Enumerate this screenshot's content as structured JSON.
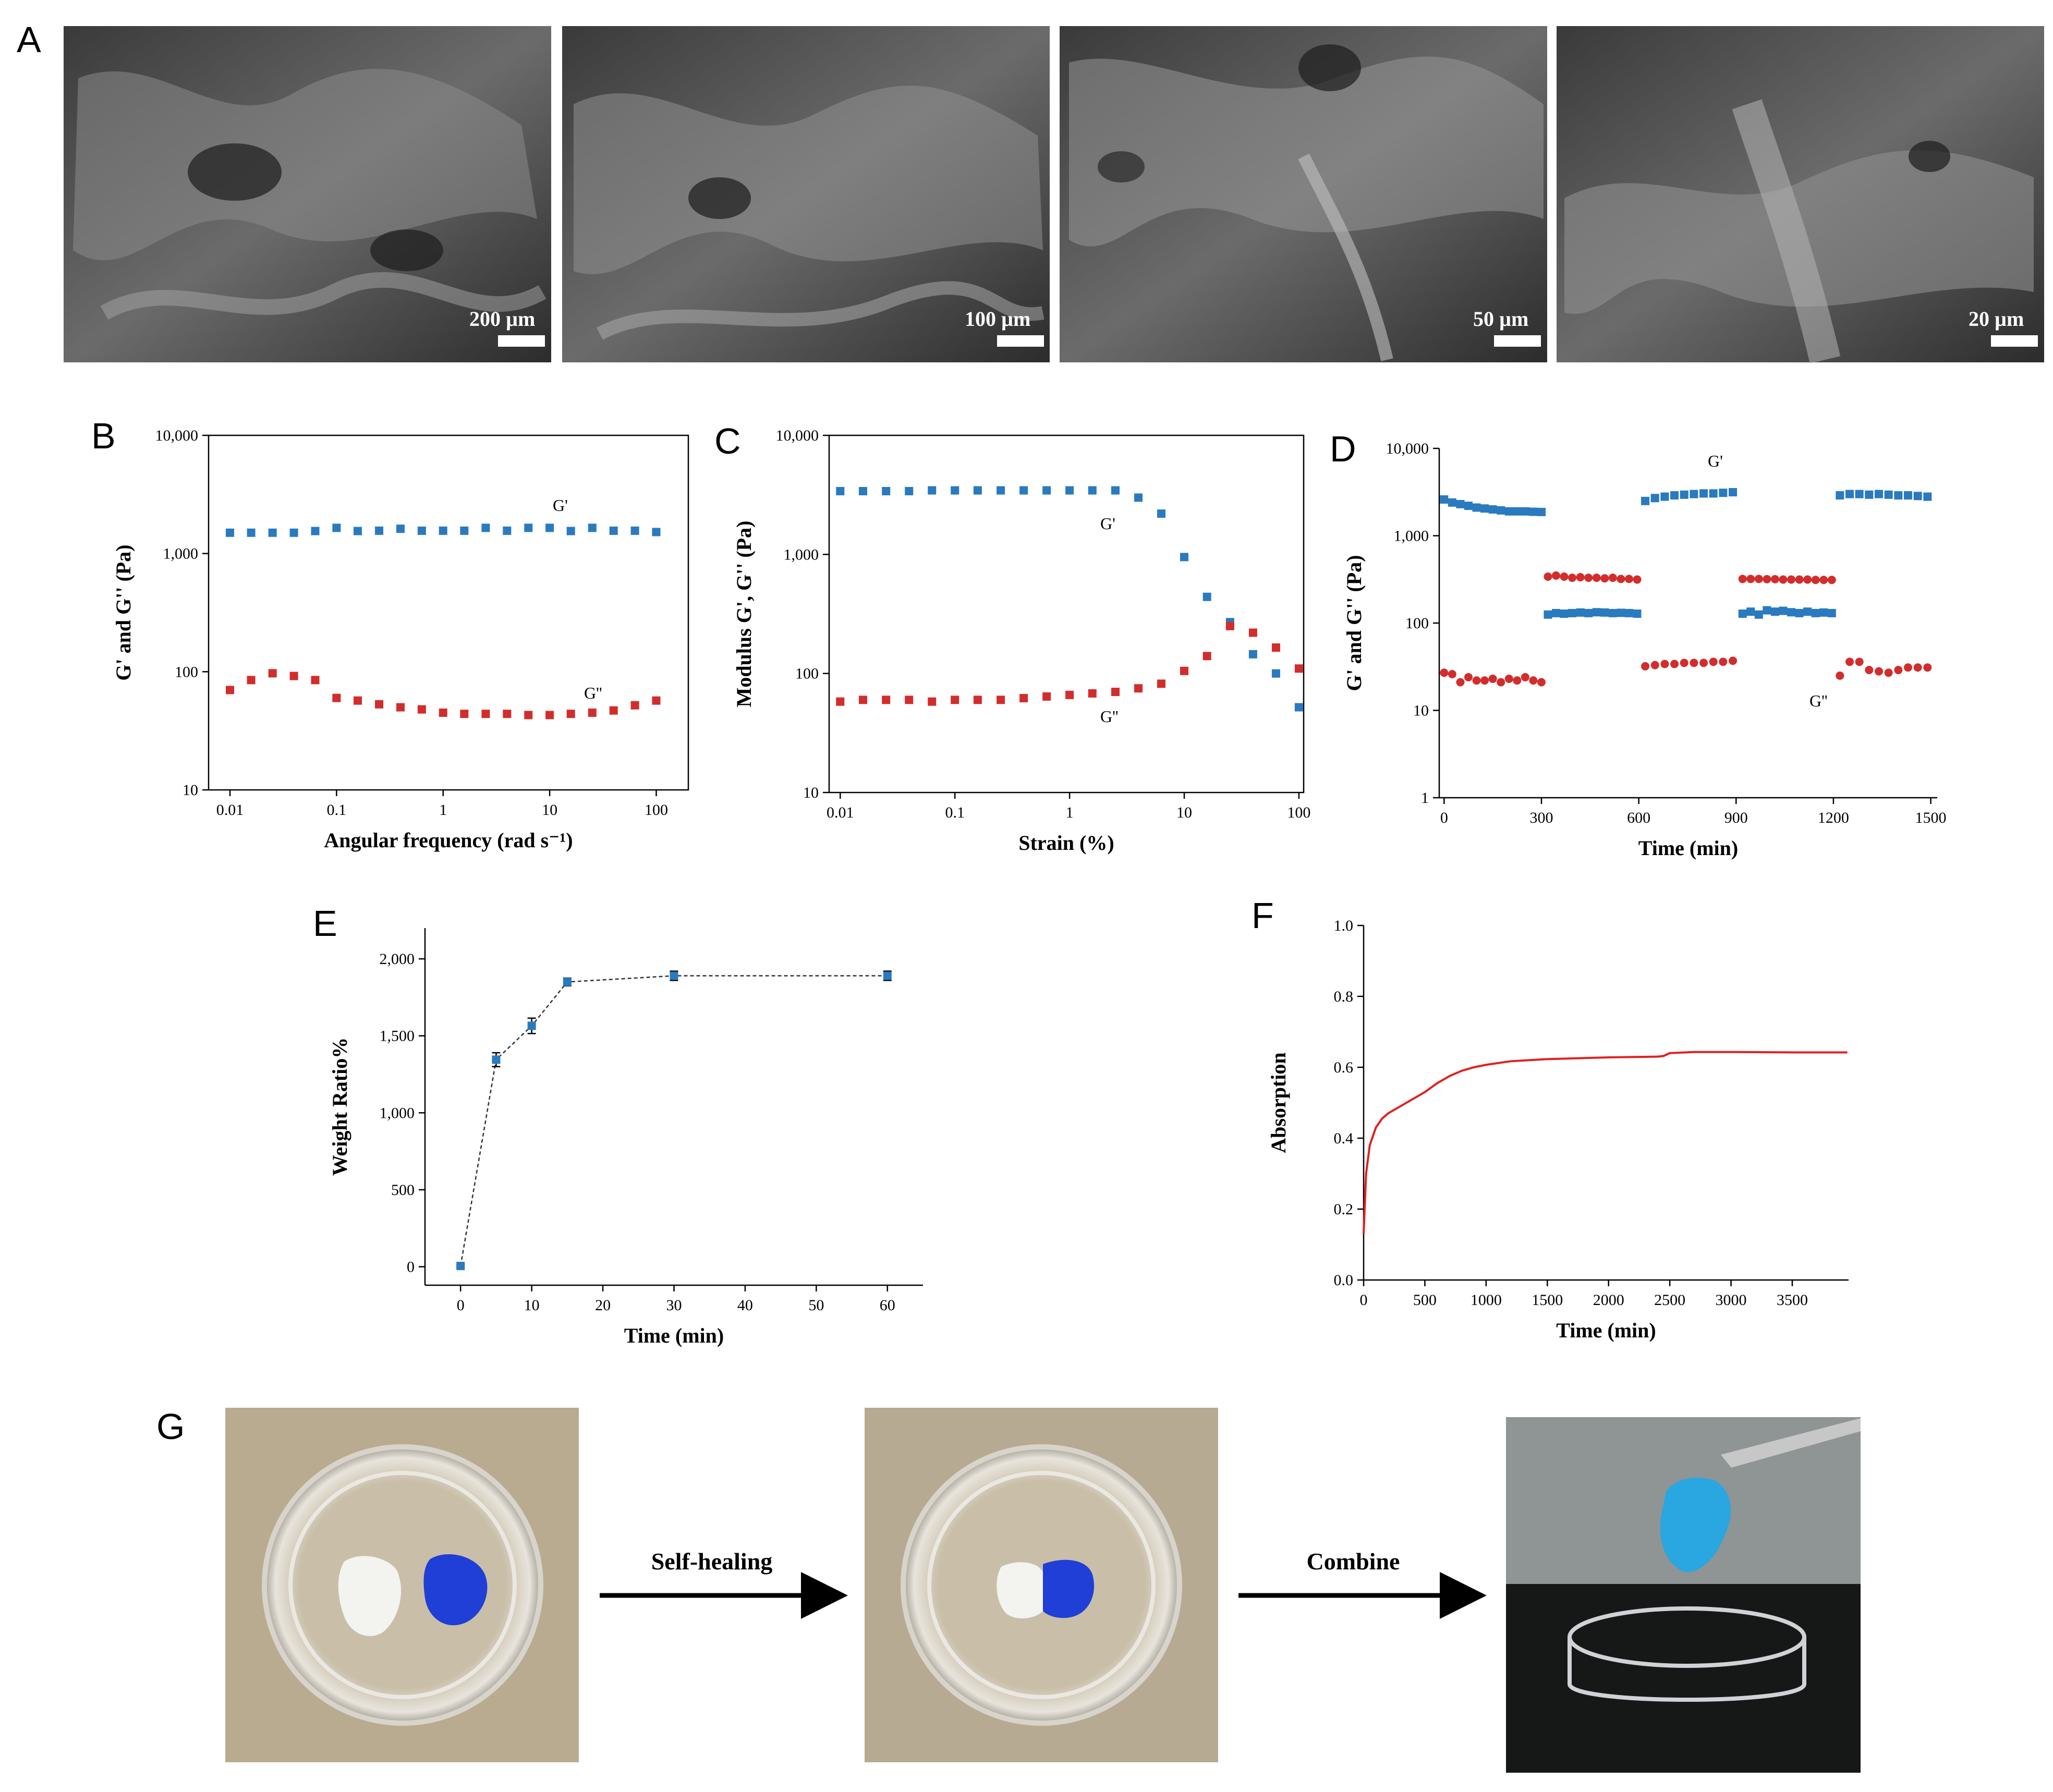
{
  "panels": {
    "A": {
      "letter": "A",
      "images": [
        {
          "scale_bar": "200 µm"
        },
        {
          "scale_bar": "100 µm"
        },
        {
          "scale_bar": "50 µm"
        },
        {
          "scale_bar": "20 µm"
        }
      ]
    },
    "B": {
      "letter": "B"
    },
    "C": {
      "letter": "C"
    },
    "D": {
      "letter": "D"
    },
    "E": {
      "letter": "E"
    },
    "F": {
      "letter": "F"
    },
    "G": {
      "letter": "G",
      "step1": "Self-healing",
      "step2": "Combine"
    }
  },
  "colors": {
    "g_prime": "#2a7abf",
    "g_double_prime": "#d22d2d",
    "absorption": "#e02020",
    "weight": "#2a7abf"
  },
  "chart_data": [
    {
      "id": "B",
      "type": "scatter",
      "xlabel": "Angular frequency (rad s⁻¹)",
      "ylabel": "G' and G'' (Pa)",
      "xscale": "log",
      "yscale": "log",
      "xlim": [
        0.0063,
        200
      ],
      "ylim": [
        10,
        10000
      ],
      "xticks": [
        0.01,
        0.1,
        1,
        10,
        100
      ],
      "xticklabels": [
        "0.01",
        "0.1",
        "1",
        "10",
        "100"
      ],
      "yticks": [
        10,
        100,
        1000,
        10000
      ],
      "yticklabels": [
        "10",
        "100",
        "1,000",
        "10,000"
      ],
      "x": [
        0.01,
        0.0158,
        0.0251,
        0.0398,
        0.0631,
        0.1,
        0.158,
        0.251,
        0.398,
        0.631,
        1,
        1.58,
        2.51,
        3.98,
        6.31,
        10,
        15.8,
        25.1,
        39.8,
        63.1,
        100
      ],
      "series": [
        {
          "name": "G'",
          "values": [
            1500,
            1500,
            1500,
            1500,
            1550,
            1650,
            1550,
            1560,
            1620,
            1560,
            1560,
            1560,
            1650,
            1560,
            1650,
            1650,
            1550,
            1650,
            1560,
            1560,
            1520
          ]
        },
        {
          "name": "G''",
          "values": [
            70,
            85,
            97,
            92,
            85,
            60,
            57,
            53,
            50,
            48,
            45,
            44,
            44,
            44,
            43,
            43,
            44,
            45,
            47,
            52,
            57
          ]
        }
      ]
    },
    {
      "id": "C",
      "type": "scatter",
      "xlabel": "Strain (%)",
      "ylabel": "Modulus G', G'' (Pa)",
      "xscale": "log",
      "yscale": "log",
      "xlim": [
        0.008,
        110
      ],
      "ylim": [
        10,
        10000
      ],
      "xticks": [
        0.01,
        0.1,
        1,
        10,
        100
      ],
      "xticklabels": [
        "0.01",
        "0.1",
        "1",
        "10",
        "100"
      ],
      "yticks": [
        10,
        100,
        1000,
        10000
      ],
      "yticklabels": [
        "10",
        "100",
        "1,000",
        "10,000"
      ],
      "x": [
        0.01,
        0.0158,
        0.0251,
        0.0398,
        0.0631,
        0.1,
        0.158,
        0.251,
        0.398,
        0.631,
        1,
        1.58,
        2.51,
        3.98,
        6.31,
        10,
        15.8,
        25.1,
        39.8,
        63.1,
        100
      ],
      "series": [
        {
          "name": "G'",
          "values": [
            3400,
            3400,
            3400,
            3400,
            3450,
            3450,
            3450,
            3450,
            3450,
            3450,
            3450,
            3450,
            3450,
            3000,
            2200,
            950,
            440,
            270,
            145,
            100,
            52
          ]
        },
        {
          "name": "G''",
          "values": [
            58,
            60,
            60,
            60,
            58,
            60,
            60,
            60,
            62,
            64,
            66,
            68,
            70,
            75,
            82,
            105,
            140,
            250,
            220,
            165,
            110
          ]
        }
      ]
    },
    {
      "id": "D",
      "type": "scatter",
      "xlabel": "Time (min)",
      "ylabel": "G' and G'' (Pa)",
      "yscale": "log",
      "xlim": [
        -15,
        1520
      ],
      "ylim": [
        1,
        10000
      ],
      "xticks": [
        0,
        300,
        600,
        900,
        1200,
        1500
      ],
      "xticklabels": [
        "0",
        "300",
        "600",
        "900",
        "1200",
        "1500"
      ],
      "yticks": [
        1,
        10,
        100,
        1000,
        10000
      ],
      "yticklabels": [
        "1",
        "10",
        "100",
        "1,000",
        "10,000"
      ],
      "series": [
        {
          "name": "G'",
          "segments": [
            {
              "x": [
                0,
                25,
                50,
                75,
                100,
                125,
                150,
                175,
                200,
                225,
                250,
                275,
                300
              ],
              "values": [
                2600,
                2400,
                2300,
                2200,
                2100,
                2050,
                2000,
                1950,
                1900,
                1900,
                1900,
                1880,
                1870
              ]
            },
            {
              "x": [
                320,
                345,
                370,
                395,
                420,
                445,
                470,
                495,
                520,
                545,
                570,
                595
              ],
              "values": [
                125,
                130,
                128,
                130,
                132,
                130,
                133,
                132,
                130,
                131,
                130,
                128
              ]
            },
            {
              "x": [
                620,
                650,
                680,
                710,
                740,
                770,
                800,
                830,
                860,
                890
              ],
              "values": [
                2500,
                2700,
                2800,
                2900,
                2950,
                3000,
                3050,
                3050,
                3100,
                3150
              ]
            },
            {
              "x": [
                920,
                945,
                970,
                995,
                1020,
                1045,
                1070,
                1095,
                1120,
                1145,
                1170,
                1195
              ],
              "values": [
                128,
                135,
                125,
                140,
                135,
                138,
                133,
                130,
                135,
                130,
                132,
                130
              ]
            },
            {
              "x": [
                1220,
                1250,
                1280,
                1310,
                1340,
                1370,
                1400,
                1430,
                1460,
                1490
              ],
              "values": [
                2900,
                3000,
                3000,
                2950,
                3000,
                2950,
                2900,
                2900,
                2850,
                2800
              ]
            }
          ]
        },
        {
          "name": "G''",
          "segments": [
            {
              "x": [
                0,
                25,
                50,
                75,
                100,
                125,
                150,
                175,
                200,
                225,
                250,
                275,
                300
              ],
              "values": [
                27,
                26,
                21,
                24,
                22,
                22,
                23,
                21,
                23,
                22,
                24,
                22,
                21
              ]
            },
            {
              "x": [
                320,
                345,
                370,
                395,
                420,
                445,
                470,
                495,
                520,
                545,
                570,
                595
              ],
              "values": [
                340,
                350,
                340,
                330,
                335,
                330,
                330,
                325,
                330,
                320,
                320,
                315
              ]
            },
            {
              "x": [
                620,
                650,
                680,
                710,
                740,
                770,
                800,
                830,
                860,
                890
              ],
              "values": [
                32,
                33,
                34,
                34,
                35,
                35,
                35,
                36,
                36,
                37
              ]
            },
            {
              "x": [
                920,
                945,
                970,
                995,
                1020,
                1045,
                1070,
                1095,
                1120,
                1145,
                1170,
                1195
              ],
              "values": [
                320,
                320,
                320,
                318,
                318,
                315,
                315,
                315,
                315,
                312,
                312,
                312
              ]
            },
            {
              "x": [
                1220,
                1250,
                1280,
                1310,
                1340,
                1370,
                1400,
                1430,
                1460,
                1490
              ],
              "values": [
                25,
                36,
                36,
                29,
                28,
                27,
                29,
                31,
                31,
                31
              ]
            }
          ]
        }
      ]
    },
    {
      "id": "E",
      "type": "line",
      "xlabel": "Time (min)",
      "ylabel": "Weight Ratio%",
      "xlim": [
        -5,
        65
      ],
      "ylim": [
        -120,
        2200
      ],
      "xticks": [
        0,
        10,
        20,
        30,
        40,
        50,
        60
      ],
      "xticklabels": [
        "0",
        "10",
        "20",
        "30",
        "40",
        "50",
        "60"
      ],
      "yticks": [
        0,
        500,
        1000,
        1500,
        2000
      ],
      "yticklabels": [
        "0",
        "500",
        "1,000",
        "1,500",
        "2,000"
      ],
      "x": [
        0,
        5,
        10,
        15,
        30,
        60
      ],
      "series": [
        {
          "name": "",
          "values": [
            5,
            1345,
            1565,
            1850,
            1890,
            1890
          ],
          "errors": [
            10,
            45,
            50,
            25,
            30,
            30
          ]
        }
      ]
    },
    {
      "id": "F",
      "type": "line",
      "xlabel": "Time (min)",
      "ylabel": "Absorption",
      "xlim": [
        0,
        3960
      ],
      "ylim": [
        0,
        1.0
      ],
      "xticks": [
        0,
        500,
        1000,
        1500,
        2000,
        2500,
        3000,
        3500
      ],
      "xticklabels": [
        "0",
        "500",
        "1000",
        "1500",
        "2000",
        "2500",
        "3000",
        "3500"
      ],
      "yticks": [
        0,
        0.2,
        0.4,
        0.6,
        0.8,
        1.0
      ],
      "yticklabels": [
        "0.0",
        "0.2",
        "0.4",
        "0.6",
        "0.8",
        "1.0"
      ],
      "x": [
        0,
        20,
        50,
        80,
        100,
        150,
        200,
        300,
        400,
        500,
        600,
        700,
        800,
        900,
        1000,
        1200,
        1500,
        2000,
        2400,
        2450,
        2500,
        2700,
        3000,
        3500,
        3950
      ],
      "series": [
        {
          "name": "",
          "values": [
            0.13,
            0.3,
            0.38,
            0.41,
            0.43,
            0.455,
            0.47,
            0.49,
            0.51,
            0.53,
            0.555,
            0.575,
            0.59,
            0.6,
            0.607,
            0.617,
            0.623,
            0.628,
            0.63,
            0.632,
            0.64,
            0.643,
            0.643,
            0.642,
            0.642
          ]
        }
      ]
    }
  ]
}
